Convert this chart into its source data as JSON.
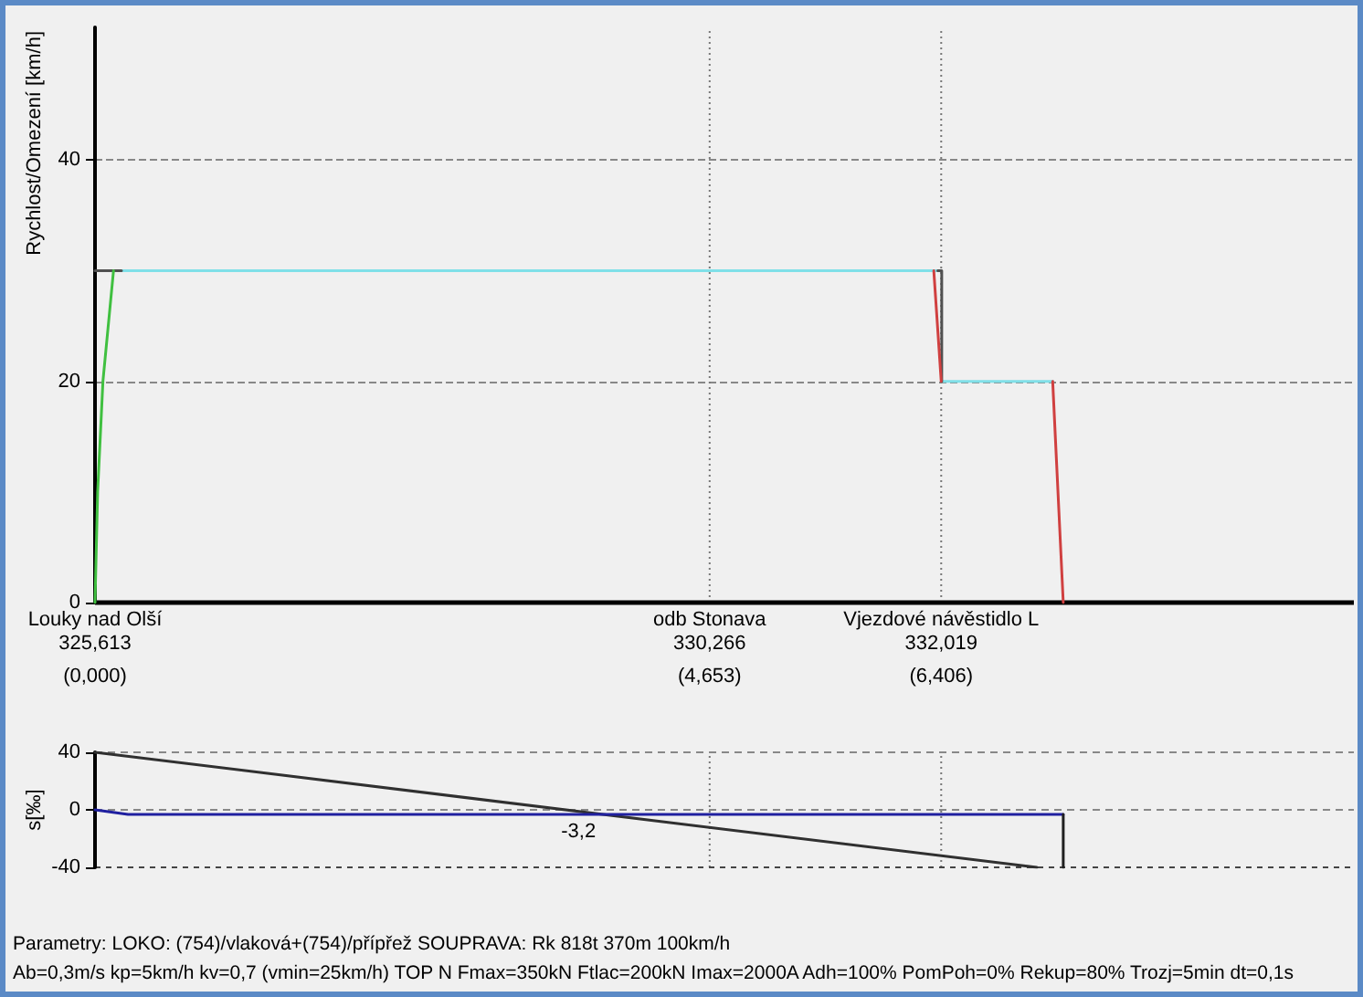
{
  "chart_data": [
    {
      "type": "line",
      "ylabel": "Rychlost/Omezení [km/h]",
      "xlim": [
        325.613,
        335.143
      ],
      "ylim": [
        0,
        52
      ],
      "yticks": [
        0,
        20,
        40
      ],
      "xticks": [
        {
          "value": 325.613,
          "label": "325,613"
        },
        {
          "value": 330.266,
          "label": "330,266"
        },
        {
          "value": 332.019,
          "label": "332,019"
        }
      ],
      "grid": "y",
      "marker": "none",
      "line_style": "solid",
      "ref_lines": [
        {
          "axis": "x",
          "value": 330.266,
          "label": "odb Stonava",
          "line_style": "dotted",
          "color": "#777777"
        },
        {
          "axis": "x",
          "value": 332.019,
          "label": "Vjezdové návěstidlo L",
          "line_style": "dotted",
          "color": "#777777"
        }
      ],
      "annotations": [
        "Louky nad Olší"
      ],
      "series": [
        {
          "color": "#80e0e8",
          "x": [
            325.813,
            331.993
          ],
          "values": [
            30,
            30
          ]
        },
        {
          "color": "#80e0e8",
          "x": [
            332.023,
            332.863
          ],
          "values": [
            20,
            20
          ]
        },
        {
          "color": "#505050",
          "x": [
            325.613,
            325.813
          ],
          "values": [
            30,
            30
          ]
        },
        {
          "color": "#505050",
          "x": [
            331.993,
            332.023,
            332.023
          ],
          "values": [
            30,
            30,
            20
          ]
        },
        {
          "color": "#40c040",
          "x": [
            325.613,
            325.633,
            325.673,
            325.753
          ],
          "values": [
            0,
            10,
            20,
            30
          ]
        },
        {
          "color": "#d04040",
          "x": [
            331.963,
            332.019
          ],
          "values": [
            30,
            20
          ]
        },
        {
          "color": "#d04040",
          "x": [
            332.863,
            332.943
          ],
          "values": [
            20,
            0
          ]
        }
      ]
    },
    {
      "type": "line",
      "ylabel": "s[‰]",
      "xlim": [
        0,
        9.53
      ],
      "ylim": [
        -40,
        40
      ],
      "yticks": [
        -40,
        0,
        40
      ],
      "xticks": [
        {
          "value": 0,
          "label": "(0,000)"
        },
        {
          "value": 4.653,
          "label": "(4,653)"
        },
        {
          "value": 6.406,
          "label": "(6,406)"
        }
      ],
      "marker": "none",
      "line_style": "solid",
      "ref_lines": [
        {
          "axis": "x",
          "value": 4.653,
          "line_style": "dotted",
          "color": "#777777"
        },
        {
          "axis": "x",
          "value": 6.406,
          "line_style": "dotted",
          "color": "#777777"
        },
        {
          "axis": "y",
          "value": 40,
          "line_style": "dashed",
          "color": "#888888"
        },
        {
          "axis": "y",
          "value": 0,
          "line_style": "dashed",
          "color": "#888888"
        }
      ],
      "series": [
        {
          "color": "#303030",
          "x": [
            0,
            7.13
          ],
          "values": [
            40,
            -40
          ]
        },
        {
          "color": "#2020a0",
          "x": [
            0,
            0.25,
            3.66,
            7.33
          ],
          "values": [
            0,
            -3.2,
            -3.2,
            -3.2
          ],
          "value_labels": [
            null,
            null,
            "-3,2",
            null
          ]
        },
        {
          "color": "#202020",
          "x": [
            7.33,
            7.33
          ],
          "values": [
            -3.2,
            -40
          ]
        }
      ],
      "annotations": [
        "Parametry: LOKO: (754)/vlaková+(754)/přípřež SOUPRAVA: Rk 818t 370m 100km/h",
        "Ab=0,3m/s kp=5km/h kv=0,7 (vmin=25km/h) TOP N Fmax=350kN Ftlac=200kN Imax=2000A Adh=100% PomPoh=0% Rekup=80% Trozj=5min dt=0,1s"
      ]
    }
  ]
}
